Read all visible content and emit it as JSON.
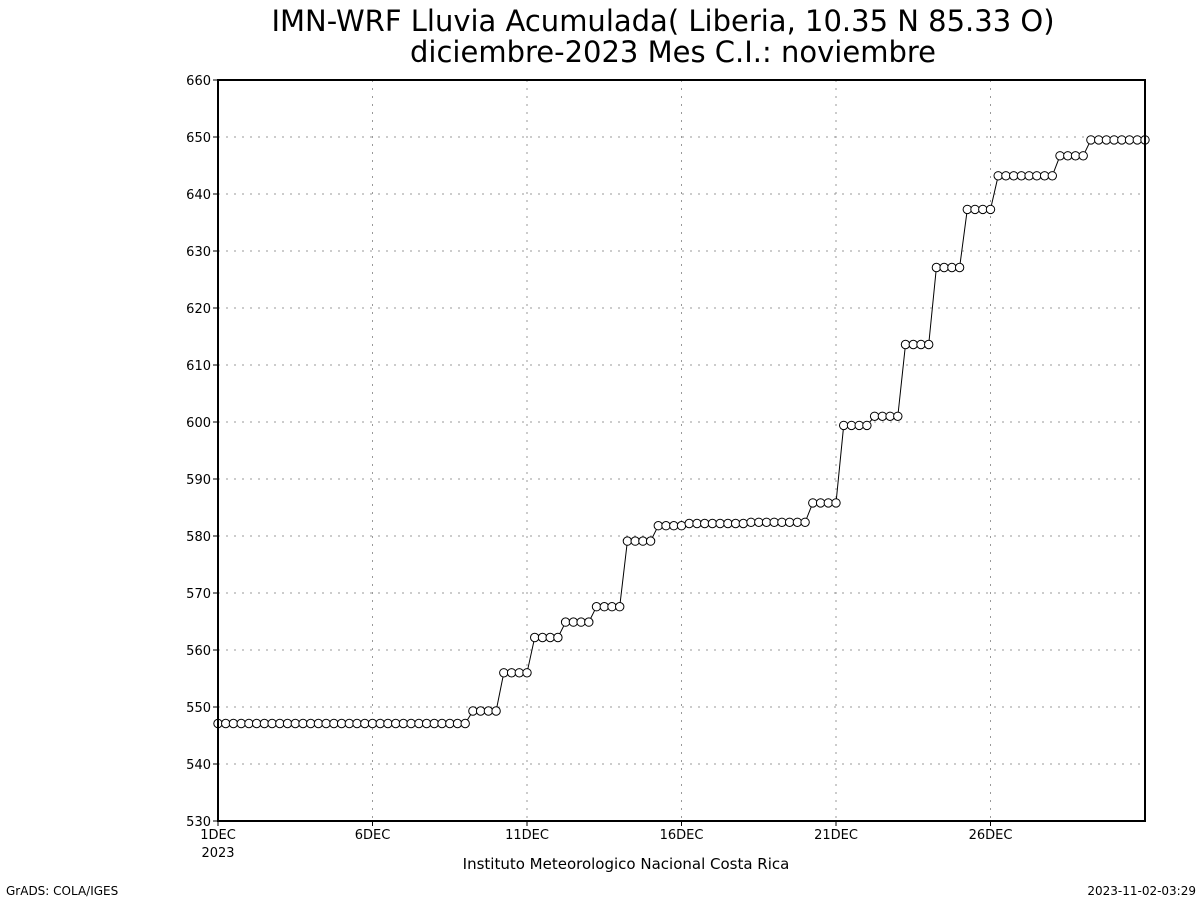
{
  "chart_data": {
    "type": "line",
    "title": "IMN-WRF  Lluvia Acumulada( Liberia, 10.35  N 85.33  O)",
    "subtitle": "diciembre-2023 Mes C.I.: noviembre",
    "xlabel": "",
    "ylabel": "",
    "ylim": [
      530,
      660
    ],
    "xlim_days": [
      1,
      31
    ],
    "yticks": [
      530,
      540,
      550,
      560,
      570,
      580,
      590,
      600,
      610,
      620,
      630,
      640,
      650,
      660
    ],
    "xticks": [
      {
        "day": 1,
        "label": "1DEC",
        "sublabel": "2023"
      },
      {
        "day": 6,
        "label": "6DEC"
      },
      {
        "day": 11,
        "label": "11DEC"
      },
      {
        "day": 16,
        "label": "16DEC"
      },
      {
        "day": 21,
        "label": "21DEC"
      },
      {
        "day": 26,
        "label": "26DEC"
      }
    ],
    "grid": true,
    "marker": "open-circle",
    "time_step_hours": 6,
    "series": [
      {
        "values": [
          547.1,
          547.1,
          547.1,
          547.1,
          547.1,
          547.1,
          547.1,
          547.1,
          547.1,
          547.1,
          547.1,
          547.1,
          547.1,
          547.1,
          547.1,
          547.1,
          547.1,
          547.1,
          547.1,
          547.1,
          547.1,
          547.1,
          547.1,
          547.1,
          547.1,
          547.1,
          547.1,
          547.1,
          547.1,
          547.1,
          547.1,
          547.1,
          547.1,
          549.3,
          549.3,
          549.3,
          549.3,
          556.0,
          556.0,
          556.0,
          556.0,
          562.2,
          562.2,
          562.2,
          562.2,
          564.9,
          564.9,
          564.9,
          564.9,
          567.6,
          567.6,
          567.6,
          567.6,
          579.1,
          579.1,
          579.1,
          579.1,
          581.8,
          581.8,
          581.8,
          581.8,
          582.2,
          582.2,
          582.2,
          582.2,
          582.2,
          582.2,
          582.2,
          582.2,
          582.4,
          582.4,
          582.4,
          582.4,
          582.4,
          582.4,
          582.4,
          582.4,
          585.8,
          585.8,
          585.8,
          585.8,
          599.4,
          599.4,
          599.4,
          599.4,
          601.0,
          601.0,
          601.0,
          601.0,
          613.6,
          613.6,
          613.6,
          613.6,
          627.1,
          627.1,
          627.1,
          627.1,
          637.3,
          637.3,
          637.3,
          637.3,
          643.2,
          643.2,
          643.2,
          643.2,
          643.2,
          643.2,
          643.2,
          643.2,
          646.7,
          646.7,
          646.7,
          646.7,
          649.5,
          649.5,
          649.5,
          649.5,
          649.5,
          649.5,
          649.5,
          649.5
        ]
      }
    ]
  },
  "footer": {
    "institution": "Instituto Meteorologico Nacional Costa Rica",
    "credit_left": "GrADS: COLA/IGES",
    "credit_right": "2023-11-02-03:29"
  }
}
